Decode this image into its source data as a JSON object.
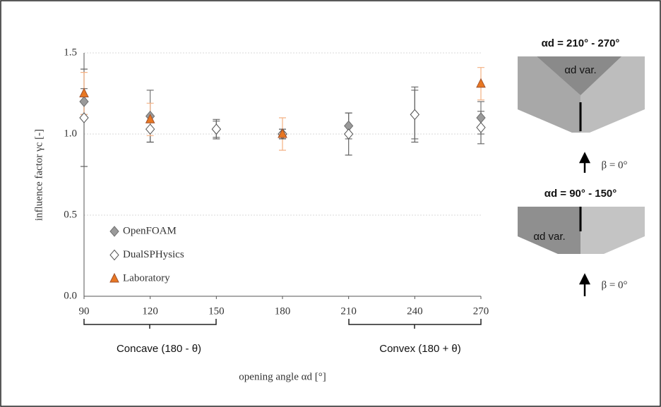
{
  "chart_data": {
    "type": "scatter",
    "x": [
      90,
      120,
      150,
      180,
      210,
      240,
      270
    ],
    "xlabel": "opening angle αd [°]",
    "ylabel": "influence factor γc [-]",
    "xlim": [
      90,
      270
    ],
    "xticks": [
      90,
      120,
      150,
      180,
      210,
      240,
      270
    ],
    "ylim": [
      0,
      1.5
    ],
    "yticks": [
      {
        "value": 0,
        "label": "0.0"
      },
      {
        "value": 0.5,
        "label": "0.5"
      },
      {
        "value": 1,
        "label": "1.0"
      },
      {
        "value": 1.5,
        "label": "1.5"
      }
    ],
    "grid": true,
    "legend": "lower left",
    "series": [
      {
        "name": "OpenFOAM",
        "color": "#9a9a9a",
        "marker": "diamond",
        "values": [
          1.2,
          1.11,
          1.03,
          1.0,
          1.05,
          1.12,
          1.1
        ],
        "errors": [
          0.08,
          0.16,
          0.05,
          0.03,
          0.08,
          0.15,
          0.1
        ]
      },
      {
        "name": "DualSPHysics",
        "color": "#ffffff",
        "marker": "diamond",
        "values": [
          1.1,
          1.03,
          1.03,
          1.0,
          1.0,
          1.12,
          1.04
        ],
        "errors": [
          0.3,
          0.08,
          0.06,
          0.03,
          0.13,
          0.17,
          0.1
        ]
      },
      {
        "name": "Laboratory",
        "color": "#e87722",
        "marker": "triangle",
        "values": [
          1.25,
          1.09,
          null,
          1.0,
          null,
          null,
          1.31
        ],
        "errors": [
          0.13,
          0.1,
          null,
          0.1,
          null,
          null,
          0.1
        ]
      }
    ],
    "annotations": [
      "Concave (180 - θ)",
      "Convex (180 + θ)",
      "αd = 210° - 270°",
      "αd var.",
      "β = 0°",
      "αd = 90° - 150°",
      "αd var.",
      "β = 0°"
    ]
  }
}
